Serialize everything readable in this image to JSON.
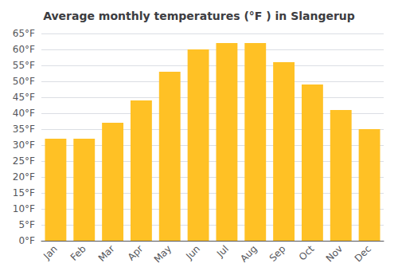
{
  "chart_data": {
    "type": "bar",
    "title": "Average monthly temperatures (°F ) in Slangerup",
    "categories": [
      "Jan",
      "Feb",
      "Mar",
      "Apr",
      "May",
      "Jun",
      "Jul",
      "Aug",
      "Sep",
      "Oct",
      "Nov",
      "Dec"
    ],
    "values": [
      32,
      32,
      37,
      44,
      53,
      60,
      62,
      62,
      56,
      49,
      41,
      35
    ],
    "color": "#FFC125",
    "ylim": [
      0,
      65
    ],
    "yticks": [
      {
        "value": 0,
        "label": "0°F"
      },
      {
        "value": 5,
        "label": "5°F"
      },
      {
        "value": 10,
        "label": "10°F"
      },
      {
        "value": 15,
        "label": "15°F"
      },
      {
        "value": 20,
        "label": "20°F"
      },
      {
        "value": 25,
        "label": "25°F"
      },
      {
        "value": 30,
        "label": "30°F"
      },
      {
        "value": 35,
        "label": "35°F"
      },
      {
        "value": 40,
        "label": "40°F"
      },
      {
        "value": 45,
        "label": "45°F"
      },
      {
        "value": 50,
        "label": "50°F"
      },
      {
        "value": 55,
        "label": "55°F"
      },
      {
        "value": 60,
        "label": "60°F"
      },
      {
        "value": 65,
        "label": "65°F"
      }
    ],
    "grid": true
  }
}
